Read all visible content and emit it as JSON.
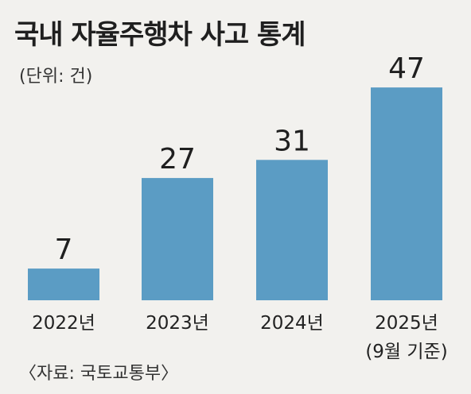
{
  "title": "국내 자율주행차 사고 통계",
  "unit": "(단위: 건)",
  "source": "〈자료: 국토교통부〉",
  "colors": {
    "bar": "#5b9cc4",
    "background": "#f2f1ee",
    "text": "#1f1f1f"
  },
  "chart_data": {
    "type": "bar",
    "title": "국내 자율주행차 사고 통계",
    "ylabel": "(단위: 건)",
    "categories": [
      "2022년",
      "2023년",
      "2024년",
      "2025년"
    ],
    "category_notes": [
      "",
      "",
      "",
      "(9월 기준)"
    ],
    "values": [
      7,
      27,
      31,
      47
    ],
    "grid": false
  }
}
